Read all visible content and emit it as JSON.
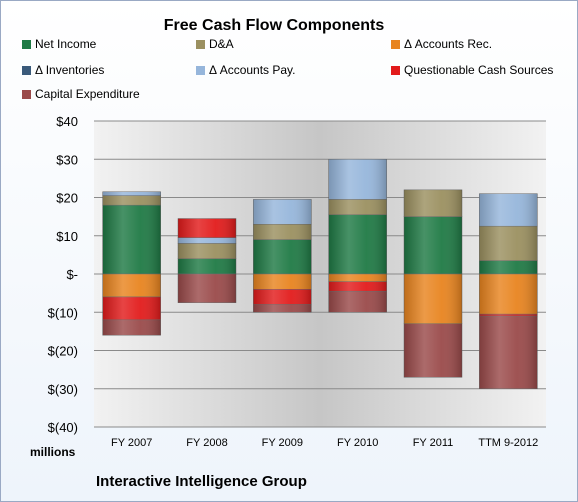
{
  "chart_data": {
    "type": "bar",
    "stacked": true,
    "title": "Free Cash Flow Components",
    "subtitle": "Interactive Intelligence Group",
    "ylabel": "millions",
    "categories": [
      "FY 2007",
      "FY 2008",
      "FY 2009",
      "FY 2010",
      "FY 2011",
      "TTM 9-2012"
    ],
    "yticks": [
      "$40",
      "$30",
      "$20",
      "$10",
      "$-",
      "$(10)",
      "$(20)",
      "$(30)",
      "$(40)"
    ],
    "ylim": [
      -40,
      40
    ],
    "grid": true,
    "legend_position": "top",
    "series": [
      {
        "name": "Net Income",
        "color": "#1f7a45",
        "values": [
          18,
          4,
          9,
          15.5,
          15,
          3.5
        ]
      },
      {
        "name": "D&A",
        "color": "#9b9060",
        "values": [
          2.5,
          4,
          4,
          4,
          7,
          9
        ]
      },
      {
        "name": "Δ Accounts Rec.",
        "color": "#e8841f",
        "values": [
          -6,
          0,
          -4,
          -2,
          -13,
          -10.5
        ]
      },
      {
        "name": "Δ Inventories",
        "color": "#3a5a7a",
        "values": [
          0,
          0,
          0,
          0,
          0,
          0
        ]
      },
      {
        "name": "Δ Accounts Pay.",
        "color": "#96b6db",
        "values": [
          1,
          1.5,
          6.5,
          10.5,
          0,
          8.5
        ]
      },
      {
        "name": "Questionable Cash Sources",
        "color": "#e21b1b",
        "values": [
          -6,
          5,
          -4,
          -2.5,
          0,
          -0.5
        ]
      },
      {
        "name": "Capital Expenditure",
        "color": "#9a4a4a",
        "values": [
          -4,
          -7.5,
          -2,
          -5.5,
          -14,
          -19
        ]
      }
    ]
  }
}
